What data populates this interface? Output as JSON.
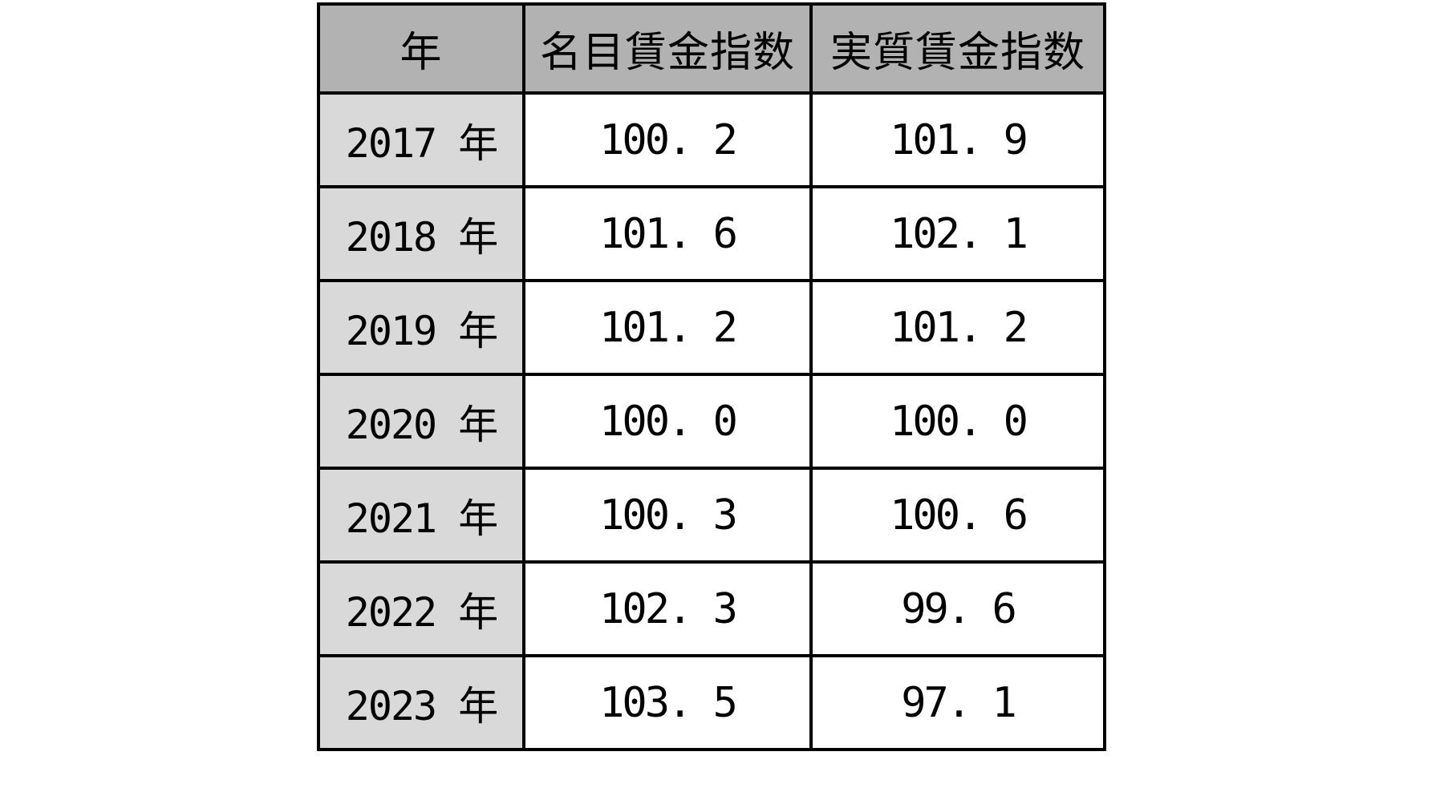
{
  "table": {
    "headers": {
      "year": "年",
      "nominal": "名目賃金指数",
      "real": "実質賃金指数"
    },
    "rows": [
      {
        "year": "2017 年",
        "nominal": "100. 2",
        "real": "101. 9"
      },
      {
        "year": "2018 年",
        "nominal": "101. 6",
        "real": "102. 1"
      },
      {
        "year": "2019 年",
        "nominal": "101. 2",
        "real": "101. 2"
      },
      {
        "year": "2020 年",
        "nominal": "100. 0",
        "real": "100. 0"
      },
      {
        "year": "2021 年",
        "nominal": "100. 3",
        "real": "100. 6"
      },
      {
        "year": "2022 年",
        "nominal": "102. 3",
        "real": "99. 6"
      },
      {
        "year": "2023 年",
        "nominal": "103. 5",
        "real": "97. 1"
      }
    ]
  },
  "chart_data": {
    "type": "table",
    "title": "",
    "columns": [
      "年",
      "名目賃金指数",
      "実質賃金指数"
    ],
    "rows": [
      [
        "2017年",
        100.2,
        101.9
      ],
      [
        "2018年",
        101.6,
        102.1
      ],
      [
        "2019年",
        101.2,
        101.2
      ],
      [
        "2020年",
        100.0,
        100.0
      ],
      [
        "2021年",
        100.3,
        100.6
      ],
      [
        "2022年",
        102.3,
        99.6
      ],
      [
        "2023年",
        103.5,
        97.1
      ]
    ]
  },
  "colors": {
    "header_bg": "#b2b2b2",
    "year_col_bg": "#d9d9d9",
    "cell_bg": "#ffffff",
    "border": "#000000",
    "text": "#000000"
  }
}
